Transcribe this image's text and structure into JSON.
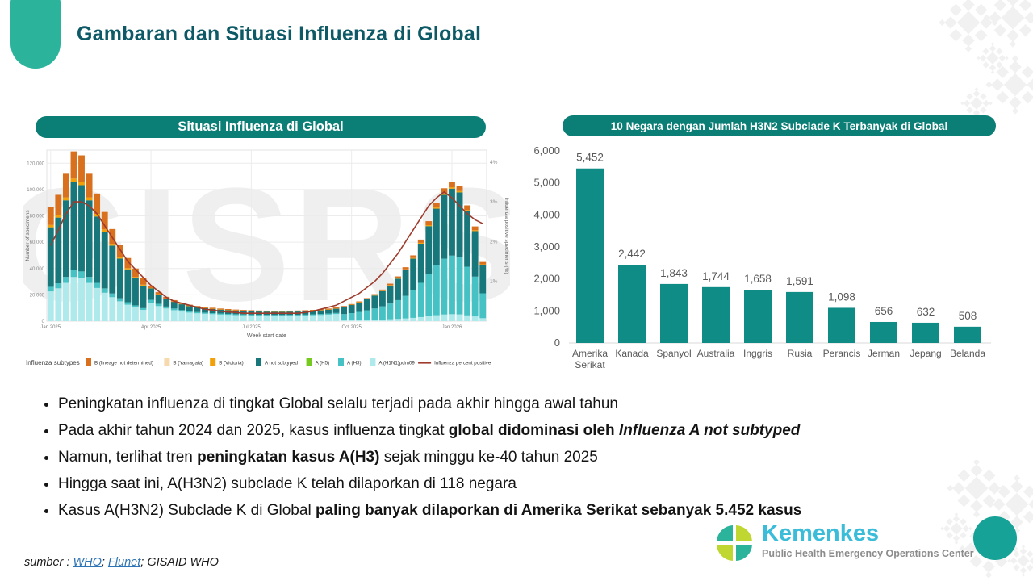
{
  "slide": {
    "title": "Gambaran dan Situasi Influenza di Global",
    "accent_color": "#2BB39B",
    "teal": "#0B7E76",
    "title_color": "#0D5A66"
  },
  "panels": {
    "left": {
      "header": "Situasi Influenza di Global"
    },
    "right": {
      "header": "10 Negara dengan Jumlah H3N2 Subclade K Terbanyak di Global"
    }
  },
  "chart_data": [
    {
      "type": "bar",
      "stacked": true,
      "title": "Situasi Influenza di Global",
      "watermark": "GISRS",
      "xlabel": "Week start date",
      "ylabel": "Number of specimens",
      "y2label": "Influenza positive specimens (%)",
      "x_ticks": [
        "Jan 2025",
        "Apr 2025",
        "Jul 2025",
        "Oct 2025",
        "Jan 2026"
      ],
      "x_tick_weeks": [
        1,
        14,
        27,
        40,
        53
      ],
      "ylim": [
        0,
        130000
      ],
      "y_ticks": [
        "0",
        "20,000",
        "40,000",
        "60,000",
        "80,000",
        "100,000",
        "120,000"
      ],
      "y2lim": [
        0,
        4.3
      ],
      "y2_ticks": [
        "1%",
        "2%",
        "3%",
        "4%"
      ],
      "legend_title": "Influenza subtypes",
      "legend": [
        {
          "label": "B (lineage not determined)",
          "color": "#D9701E",
          "type": "box"
        },
        {
          "label": "B (Yamagata)",
          "color": "#F6D9AE",
          "type": "box"
        },
        {
          "label": "B (Victoria)",
          "color": "#F2A007",
          "type": "box"
        },
        {
          "label": "A not subtyped",
          "color": "#18777B",
          "type": "box"
        },
        {
          "label": "A (H5)",
          "color": "#76C91E",
          "type": "box"
        },
        {
          "label": "A (H3)",
          "color": "#46C2C4",
          "type": "box"
        },
        {
          "label": "A (H1N1)pdm09",
          "color": "#AEE9EC",
          "type": "box"
        },
        {
          "label": "Influenza percent positive",
          "color": "#9E3B2C",
          "type": "line"
        }
      ],
      "stack_order": [
        "a_h1n1pdm09",
        "a_h3",
        "a_not_subtyped",
        "b_victoria",
        "b_lineage_nd"
      ],
      "colors": {
        "a_h1n1pdm09": "#AEE9EC",
        "a_h3": "#46C2C4",
        "a_not_subtyped": "#18777B",
        "b_victoria": "#F2A007",
        "b_lineage_nd": "#D9701E",
        "percent_positive_line": "#9E3B2C"
      },
      "totals_thousands": [
        87,
        96,
        112,
        129,
        126,
        112,
        97,
        83,
        70,
        58,
        48,
        40,
        33,
        27,
        22,
        18.5,
        16,
        14,
        12.5,
        11.5,
        10.8,
        10.2,
        9.6,
        9.2,
        8.8,
        8.5,
        8.3,
        8.1,
        8,
        7.9,
        7.9,
        8,
        8.1,
        8.3,
        8.6,
        9,
        9.6,
        10.4,
        11.5,
        13,
        15,
        17.5,
        20.5,
        24,
        28.5,
        34,
        41,
        50,
        62,
        76,
        90,
        101,
        106,
        103,
        88,
        72,
        45
      ],
      "percent_positive": [
        1.9,
        2.3,
        2.7,
        3,
        3,
        2.9,
        2.7,
        2.4,
        2.1,
        1.8,
        1.5,
        1.3,
        1.1,
        0.9,
        0.75,
        0.6,
        0.5,
        0.45,
        0.4,
        0.35,
        0.3,
        0.28,
        0.25,
        0.23,
        0.22,
        0.2,
        0.2,
        0.2,
        0.2,
        0.2,
        0.2,
        0.2,
        0.2,
        0.22,
        0.25,
        0.3,
        0.35,
        0.4,
        0.5,
        0.6,
        0.7,
        0.85,
        1,
        1.2,
        1.45,
        1.7,
        2,
        2.3,
        2.6,
        2.9,
        3.1,
        3.25,
        3.1,
        2.9,
        2.7,
        2.55,
        2.45
      ],
      "phases": [
        {
          "from": 1,
          "to": 13,
          "fractions": {
            "a_h1n1pdm09": 0.26,
            "a_h3": 0.04,
            "a_not_subtyped": 0.52,
            "b_victoria": 0.02,
            "b_lineage_nd": 0.16
          }
        },
        {
          "from": 14,
          "to": 38,
          "fractions": {
            "a_h1n1pdm09": 0.52,
            "a_h3": 0.08,
            "a_not_subtyped": 0.32,
            "b_victoria": 0.01,
            "b_lineage_nd": 0.07
          }
        },
        {
          "from": 39,
          "to": 57,
          "fractions": {
            "a_h1n1pdm09": 0.05,
            "a_h3": 0.42,
            "a_not_subtyped": 0.48,
            "b_victoria": 0.01,
            "b_lineage_nd": 0.04
          }
        }
      ]
    },
    {
      "type": "bar",
      "title": "10 Negara dengan Jumlah H3N2 Subclade K Terbanyak di Global",
      "categories": [
        "Amerika\nSerikat",
        "Kanada",
        "Spanyol",
        "Australia",
        "Inggris",
        "Rusia",
        "Perancis",
        "Jerman",
        "Jepang",
        "Belanda"
      ],
      "values": [
        5452,
        2442,
        1843,
        1744,
        1658,
        1591,
        1098,
        656,
        632,
        508
      ],
      "value_labels": [
        "5,452",
        "2,442",
        "1,843",
        "1,744",
        "1,658",
        "1,591",
        "1,098",
        "656",
        "632",
        "508"
      ],
      "ylim": [
        0,
        6000
      ],
      "y_ticks": [
        "6,000",
        "5,000",
        "4,000",
        "3,000",
        "2,000",
        "1,000",
        "0"
      ],
      "bar_color": "#0F8C85",
      "label_color": "#595959",
      "axis_color": "#D9D9D9",
      "grid": false,
      "legend_position": "none"
    }
  ],
  "bullets": [
    [
      {
        "t": "Peningkatan influenza di tingkat Global selalu terjadi pada akhir hingga awal tahun"
      }
    ],
    [
      {
        "t": "Pada akhir tahun 2024 dan 2025, kasus influenza tingkat "
      },
      {
        "t": "global didominasi oleh ",
        "b": true
      },
      {
        "t": "Influenza A not subtyped",
        "b": true,
        "i": true
      }
    ],
    [
      {
        "t": "Namun, terlihat tren "
      },
      {
        "t": "peningkatan kasus A(H3)",
        "b": true
      },
      {
        "t": " sejak minggu ke-40 tahun 2025"
      }
    ],
    [
      {
        "t": "Hingga saat ini, A(H3N2) subclade K telah dilaporkan di 118 negara"
      }
    ],
    [
      {
        "t": "Kasus A(H3N2) Subclade K di Global "
      },
      {
        "t": "paling banyak dilaporkan di Amerika Serikat sebanyak 5.452 kasus",
        "b": true
      }
    ]
  ],
  "footer": {
    "prefix": "sumber : ",
    "links": [
      "WHO",
      "Flunet"
    ],
    "separator": "; ",
    "suffix": "GISAID WHO"
  },
  "logo": {
    "name": "Kemenkes",
    "subtitle": "Public Health Emergency Operations Center"
  }
}
